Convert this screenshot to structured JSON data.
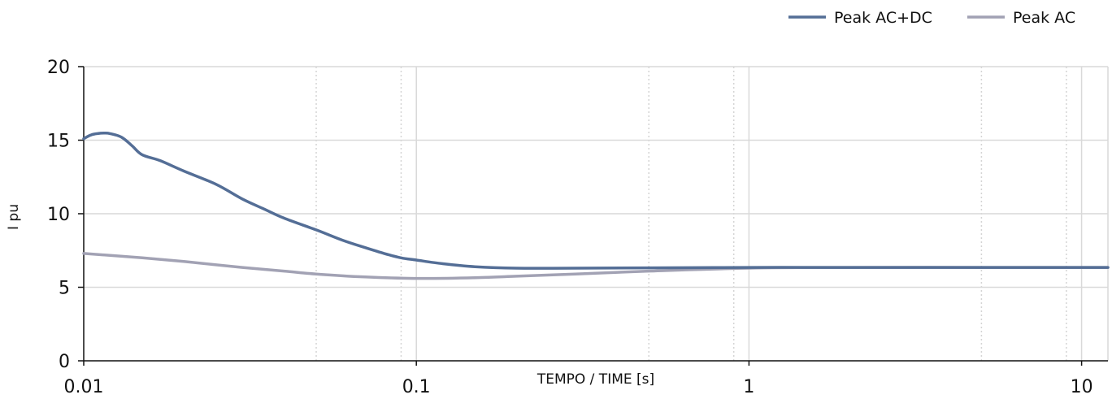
{
  "chart_data": {
    "type": "line",
    "xscale": "log",
    "xlim": [
      0.01,
      12
    ],
    "ylim": [
      0,
      20
    ],
    "grid": true,
    "legend_position": "top-right",
    "title": "",
    "xlabel": "TEMPO / TIME [s]",
    "ylabel": "I pu",
    "x_ticks": [
      "0.01",
      "0.1",
      "1",
      "10"
    ],
    "y_ticks": [
      "0",
      "5",
      "10",
      "15",
      "20"
    ],
    "series": [
      {
        "name": "Peak AC+DC",
        "color": "#546e96",
        "x": [
          0.01,
          0.0105,
          0.011,
          0.0115,
          0.012,
          0.013,
          0.014,
          0.015,
          0.017,
          0.02,
          0.025,
          0.03,
          0.035,
          0.04,
          0.05,
          0.06,
          0.07,
          0.08,
          0.09,
          0.1,
          0.12,
          0.15,
          0.2,
          0.3,
          0.5,
          1,
          2,
          5,
          12
        ],
        "y": [
          15.1,
          15.35,
          15.45,
          15.48,
          15.45,
          15.2,
          14.6,
          14.0,
          13.6,
          12.9,
          12.0,
          11.0,
          10.3,
          9.7,
          8.9,
          8.2,
          7.7,
          7.3,
          7.0,
          6.85,
          6.6,
          6.4,
          6.3,
          6.3,
          6.32,
          6.35,
          6.35,
          6.35,
          6.35
        ]
      },
      {
        "name": "Peak AC",
        "color": "#a2a2b4",
        "x": [
          0.01,
          0.015,
          0.02,
          0.03,
          0.04,
          0.05,
          0.07,
          0.1,
          0.15,
          0.2,
          0.3,
          0.5,
          1,
          2,
          5,
          12
        ],
        "y": [
          7.3,
          7.0,
          6.75,
          6.35,
          6.1,
          5.9,
          5.7,
          5.6,
          5.65,
          5.75,
          5.9,
          6.1,
          6.3,
          6.35,
          6.35,
          6.35
        ]
      }
    ]
  }
}
